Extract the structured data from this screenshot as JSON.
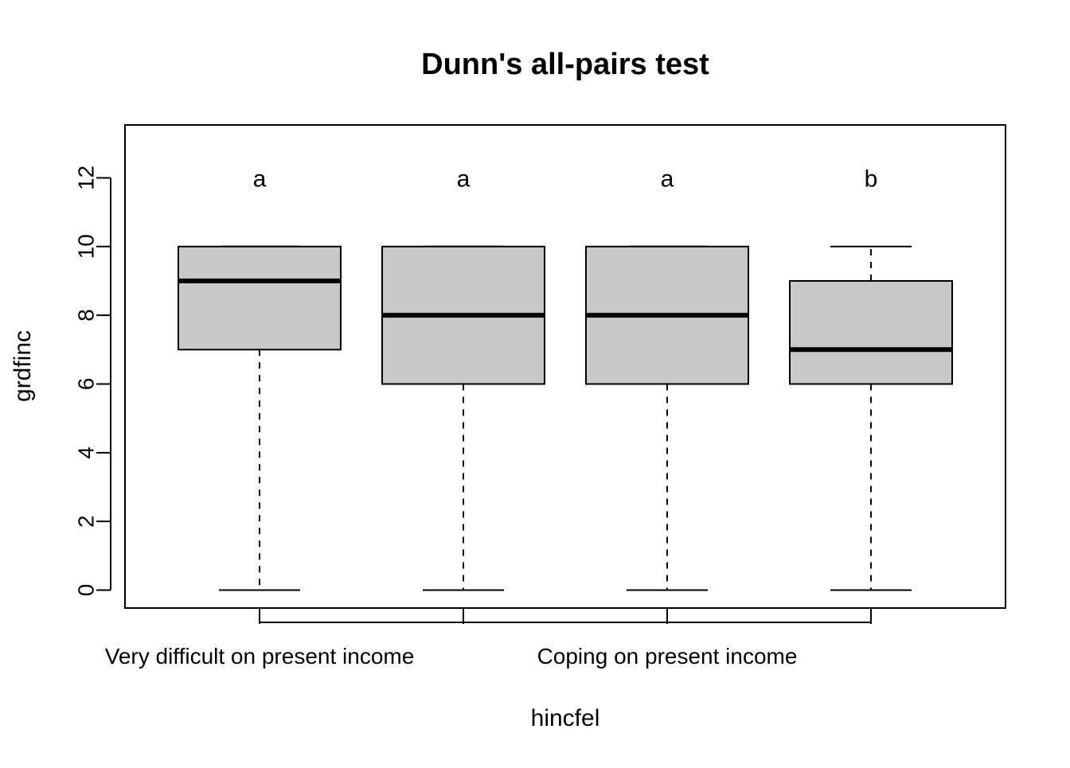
{
  "chart_data": {
    "type": "boxplot",
    "title": "Dunn's all-pairs test",
    "xlabel": "hincfel",
    "ylabel": "grdfinc",
    "ylim": [
      -0.5,
      13.5
    ],
    "y_ticks": [
      0,
      2,
      4,
      6,
      8,
      10,
      12
    ],
    "grid": false,
    "categories": [
      "Very difficult on present income",
      "",
      "Coping on present income",
      ""
    ],
    "boxes": [
      {
        "whisker_low": 0,
        "q1": 7,
        "median": 9,
        "q3": 10,
        "whisker_high": 10,
        "letter": "a"
      },
      {
        "whisker_low": 0,
        "q1": 6,
        "median": 8,
        "q3": 10,
        "whisker_high": 10,
        "letter": "a"
      },
      {
        "whisker_low": 0,
        "q1": 6,
        "median": 8,
        "q3": 10,
        "whisker_high": 10,
        "letter": "a"
      },
      {
        "whisker_low": 0,
        "q1": 6,
        "median": 7,
        "q3": 9,
        "whisker_high": 10,
        "letter": "b"
      }
    ],
    "letter_y": 12,
    "box_fill": "#c8c8c8",
    "line_color": "#000000"
  }
}
